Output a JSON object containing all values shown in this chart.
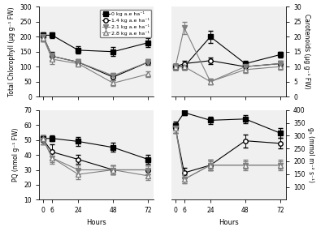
{
  "hours": [
    0,
    6,
    24,
    48,
    72
  ],
  "treatments": [
    "0 kg a.e ha⁻¹",
    "1.4 kg a.e ha⁻¹",
    "2.1 kg a.e ha⁻¹",
    "2.8 kg a.e ha⁻¹"
  ],
  "markers": [
    "s",
    "o",
    "v",
    "^"
  ],
  "fillstyles": [
    "full",
    "none",
    "full",
    "none"
  ],
  "colors": [
    "black",
    "black",
    "gray",
    "gray"
  ],
  "chlorophyll": {
    "means": [
      [
        205,
        205,
        155,
        150,
        180
      ],
      [
        200,
        135,
        115,
        65,
        115
      ],
      [
        200,
        135,
        115,
        70,
        115
      ],
      [
        195,
        125,
        110,
        45,
        75
      ]
    ],
    "errors": [
      [
        8,
        10,
        12,
        15,
        15
      ],
      [
        15,
        15,
        10,
        10,
        10
      ],
      [
        10,
        12,
        10,
        8,
        10
      ],
      [
        10,
        15,
        10,
        10,
        10
      ]
    ],
    "ylabel": "Total Chlorophyll (μg g⁻¹ FW)",
    "ylim": [
      0,
      300
    ],
    "yticks": [
      0,
      50,
      100,
      150,
      200,
      250,
      300
    ]
  },
  "carotenoids": {
    "means": [
      [
        10,
        10,
        20,
        11,
        14
      ],
      [
        10,
        11,
        12,
        10,
        11
      ],
      [
        10,
        23,
        5,
        10,
        11
      ],
      [
        10,
        10,
        5,
        9,
        10
      ]
    ],
    "errors": [
      [
        1,
        1,
        2,
        1,
        1
      ],
      [
        1,
        1,
        1,
        1,
        1
      ],
      [
        1,
        2,
        1,
        1,
        1
      ],
      [
        1,
        1,
        1,
        1,
        1
      ]
    ],
    "ylabel": "Carotenoids (μg g⁻¹ FW)",
    "ylim": [
      0,
      30
    ],
    "yticks": [
      0,
      5,
      10,
      15,
      20,
      25,
      30
    ]
  },
  "pq": {
    "means": [
      [
        51,
        51,
        49,
        45,
        37
      ],
      [
        50,
        42,
        37,
        30,
        30
      ],
      [
        50,
        38,
        30,
        30,
        30
      ],
      [
        51,
        38,
        27,
        30,
        26
      ]
    ],
    "errors": [
      [
        2,
        2,
        3,
        3,
        3
      ],
      [
        3,
        5,
        3,
        3,
        3
      ],
      [
        3,
        4,
        3,
        3,
        3
      ],
      [
        2,
        3,
        3,
        3,
        3
      ]
    ],
    "ylabel": "PQ (nmol g⁻¹ FW)",
    "ylim": [
      10,
      70
    ],
    "yticks": [
      10,
      20,
      30,
      40,
      50,
      60,
      70
    ]
  },
  "gs": {
    "means": [
      [
        340,
        390,
        360,
        365,
        310
      ],
      [
        330,
        155,
        185,
        280,
        270
      ],
      [
        330,
        130,
        185,
        185,
        185
      ],
      [
        330,
        130,
        185,
        185,
        185
      ]
    ],
    "errors": [
      [
        15,
        10,
        15,
        15,
        20
      ],
      [
        20,
        20,
        20,
        25,
        20
      ],
      [
        20,
        15,
        20,
        20,
        20
      ],
      [
        20,
        15,
        15,
        15,
        15
      ]
    ],
    "ylabel": "gₛ (mmol m⁻² s⁻¹)",
    "ylim": [
      50,
      400
    ],
    "yticks": [
      100,
      150,
      200,
      250,
      300,
      350,
      400
    ]
  },
  "xlabel": "Hours",
  "xticks": [
    0,
    6,
    24,
    48,
    72
  ],
  "background_color": "#f0f0f0"
}
